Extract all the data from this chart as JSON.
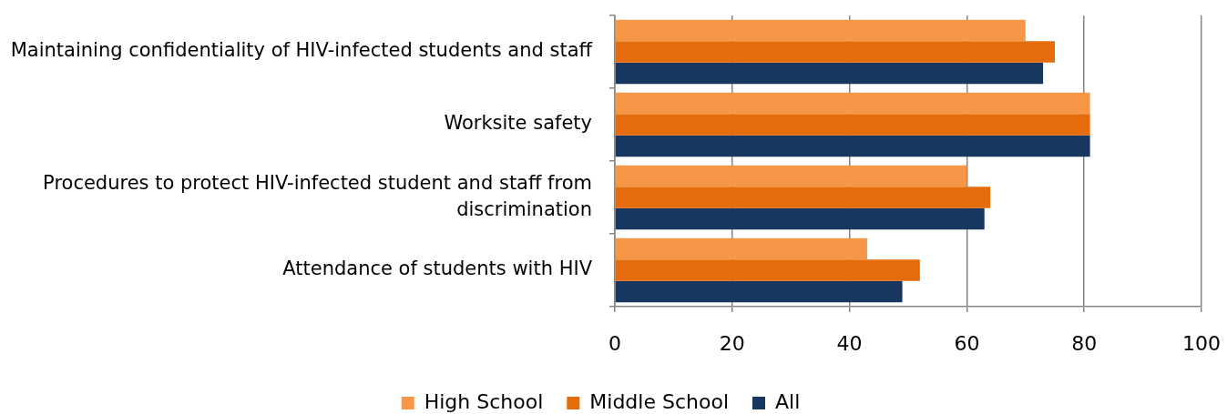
{
  "chart_data": {
    "type": "bar",
    "orientation": "horizontal",
    "categories": [
      "Maintaining confidentiality of HIV-infected students and staff",
      "Worksite safety",
      "Procedures to protect HIV-infected student and staff from discrimination",
      "Attendance of students with HIV"
    ],
    "series": [
      {
        "name": "High School",
        "color": "#f79646",
        "values": [
          70,
          81,
          60,
          43
        ]
      },
      {
        "name": "Middle School",
        "color": "#e46c0a",
        "values": [
          75,
          81,
          64,
          52
        ]
      },
      {
        "name": "All",
        "color": "#17375e",
        "values": [
          73,
          81,
          63,
          49
        ]
      }
    ],
    "xlim": [
      0,
      100
    ],
    "xticks": [
      0,
      20,
      40,
      60,
      80,
      100
    ],
    "grid": "x",
    "legend": "bottom"
  }
}
